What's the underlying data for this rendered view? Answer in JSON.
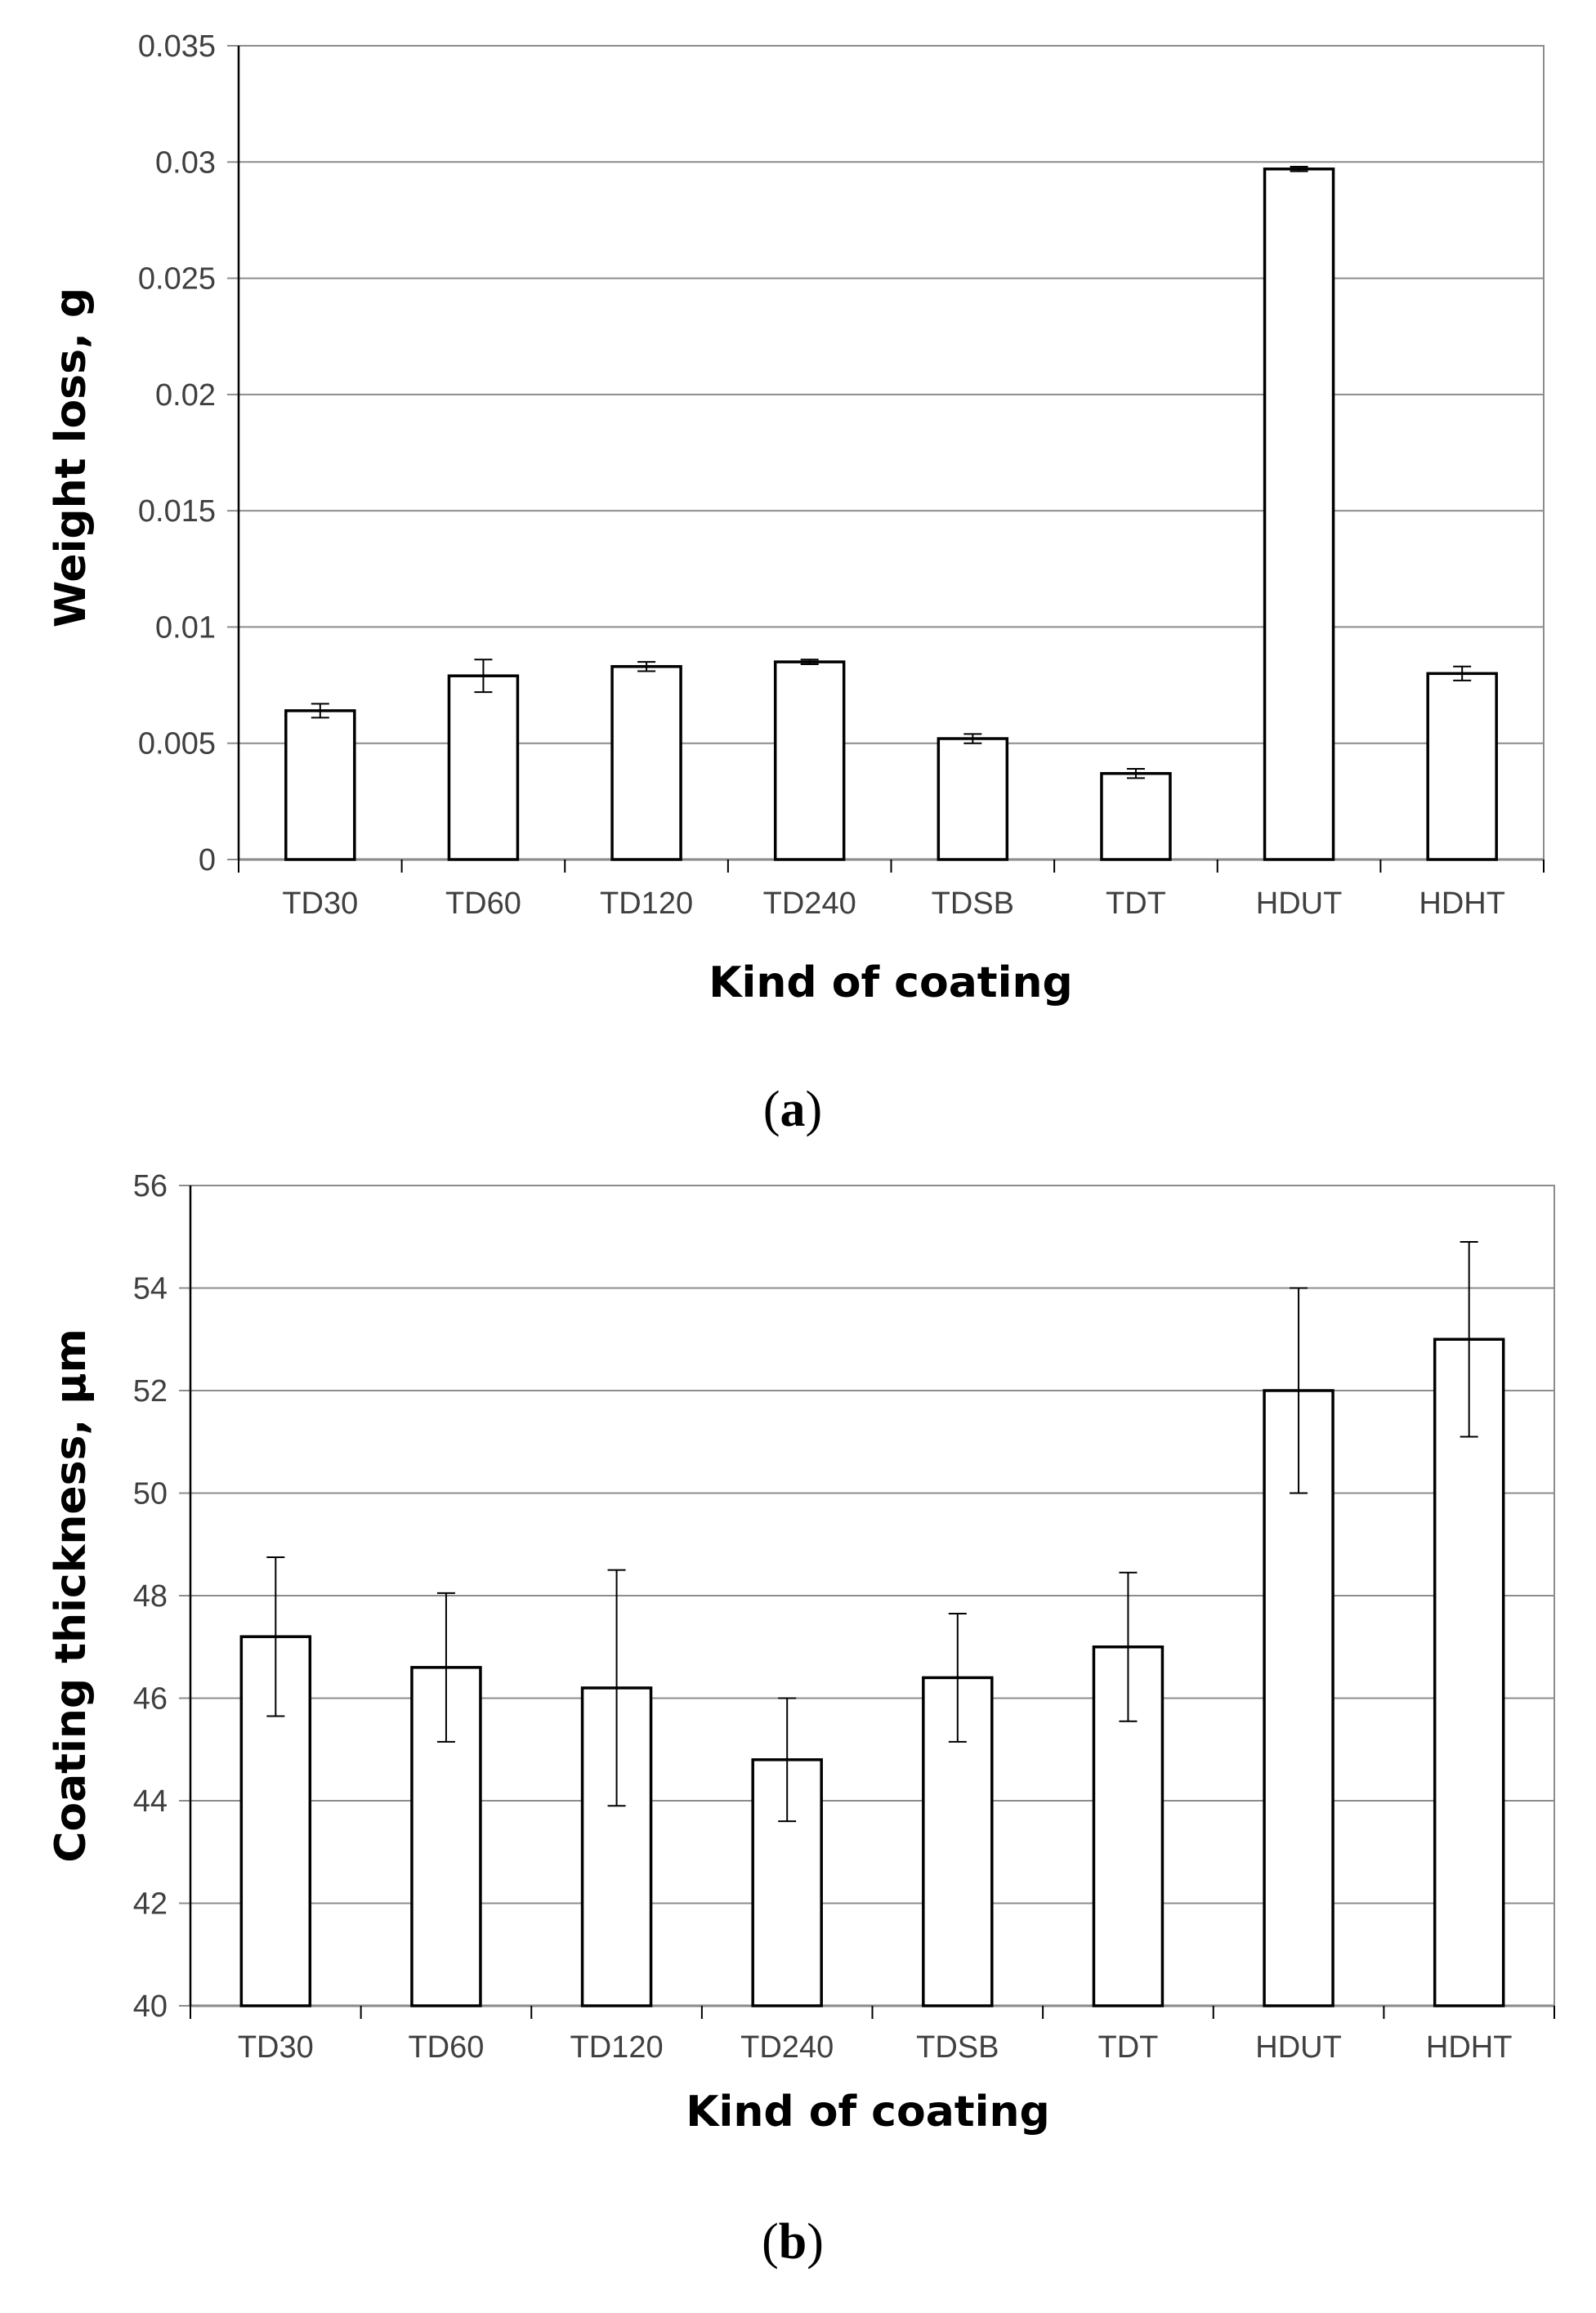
{
  "chart_data": [
    {
      "type": "bar",
      "panel_label": "a",
      "title": "",
      "xlabel": "Kind of coating",
      "ylabel": "Weight loss, g",
      "categories": [
        "TD30",
        "TD60",
        "TD120",
        "TD240",
        "TDSB",
        "TDT",
        "HDUT",
        "HDHT"
      ],
      "values": [
        0.0064,
        0.0079,
        0.0083,
        0.0085,
        0.0052,
        0.0037,
        0.0297,
        0.008
      ],
      "errors": [
        0.0003,
        0.0007,
        0.0002,
        0.0001,
        0.0002,
        0.0002,
        0.0001,
        0.0003
      ],
      "ylim": [
        0,
        0.035
      ],
      "yticks": [
        "0",
        "0.005",
        "0.01",
        "0.015",
        "0.02",
        "0.025",
        "0.03",
        "0.035"
      ],
      "grid": true,
      "legend": "none"
    },
    {
      "type": "bar",
      "panel_label": "b",
      "title": "",
      "xlabel": "Kind of coating",
      "ylabel": "Coating thickness, µm",
      "categories": [
        "TD30",
        "TD60",
        "TD120",
        "TD240",
        "TDSB",
        "TDT",
        "HDUT",
        "HDHT"
      ],
      "values": [
        47.2,
        46.6,
        46.2,
        44.8,
        46.4,
        47.0,
        52.0,
        53.0
      ],
      "errors": [
        1.55,
        1.45,
        2.3,
        1.2,
        1.25,
        1.45,
        2.0,
        1.9
      ],
      "ylim": [
        40,
        56
      ],
      "yticks": [
        "40",
        "42",
        "44",
        "46",
        "48",
        "50",
        "52",
        "54",
        "56"
      ],
      "grid": true,
      "legend": "none"
    }
  ]
}
